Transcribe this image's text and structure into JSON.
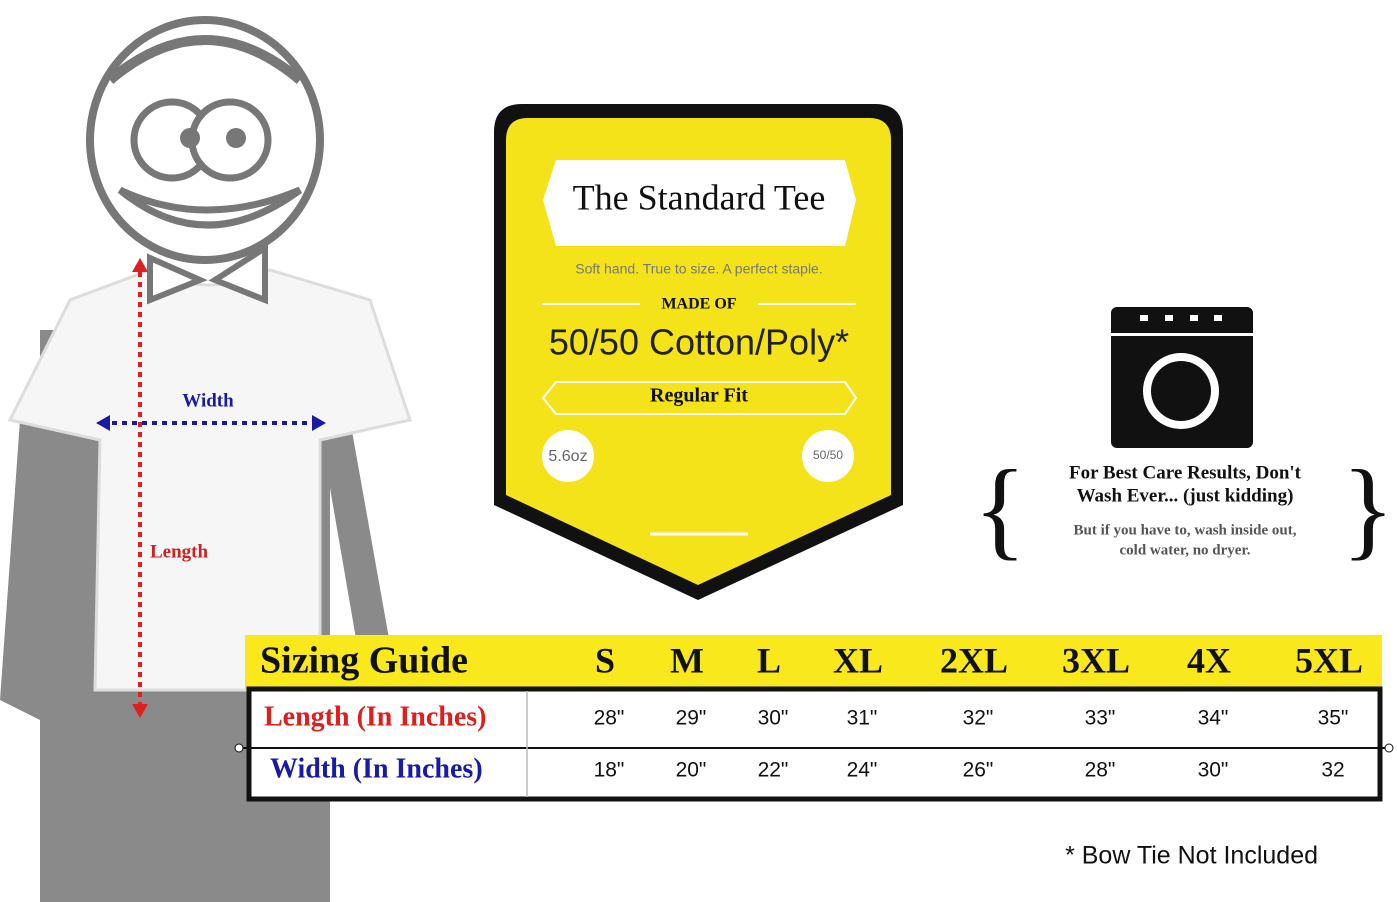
{
  "figure": {
    "width_label": "Width",
    "length_label": "Length"
  },
  "tag": {
    "title": "The Standard Tee",
    "tagline": "Soft hand. True to size. A perfect staple.",
    "made_of": "MADE OF",
    "material": "50/50 Cotton/Poly*",
    "fit": "Regular Fit",
    "weight": "5.6oz",
    "blend": "50/50"
  },
  "care": {
    "heading": [
      "For Best Care Results, Don't",
      "Wash Ever... (just kidding)"
    ],
    "body": [
      "But if you have to, wash inside out,",
      "cold water, no dryer."
    ]
  },
  "table": {
    "title": "Sizing Guide",
    "sizes": [
      "S",
      "M",
      "L",
      "XL",
      "2XL",
      "3XL",
      "4X",
      "5XL"
    ],
    "rows": [
      {
        "label": "Length (In Inches)",
        "values": [
          "28\"",
          "29\"",
          "30\"",
          "31\"",
          "32\"",
          "33\"",
          "34\"",
          "35\""
        ]
      },
      {
        "label": "Width (In Inches)",
        "values": [
          "18\"",
          "20\"",
          "22\"",
          "24\"",
          "26\"",
          "28\"",
          "30\"",
          "32"
        ]
      }
    ]
  },
  "footnote": "* Bow Tie Not Included"
}
